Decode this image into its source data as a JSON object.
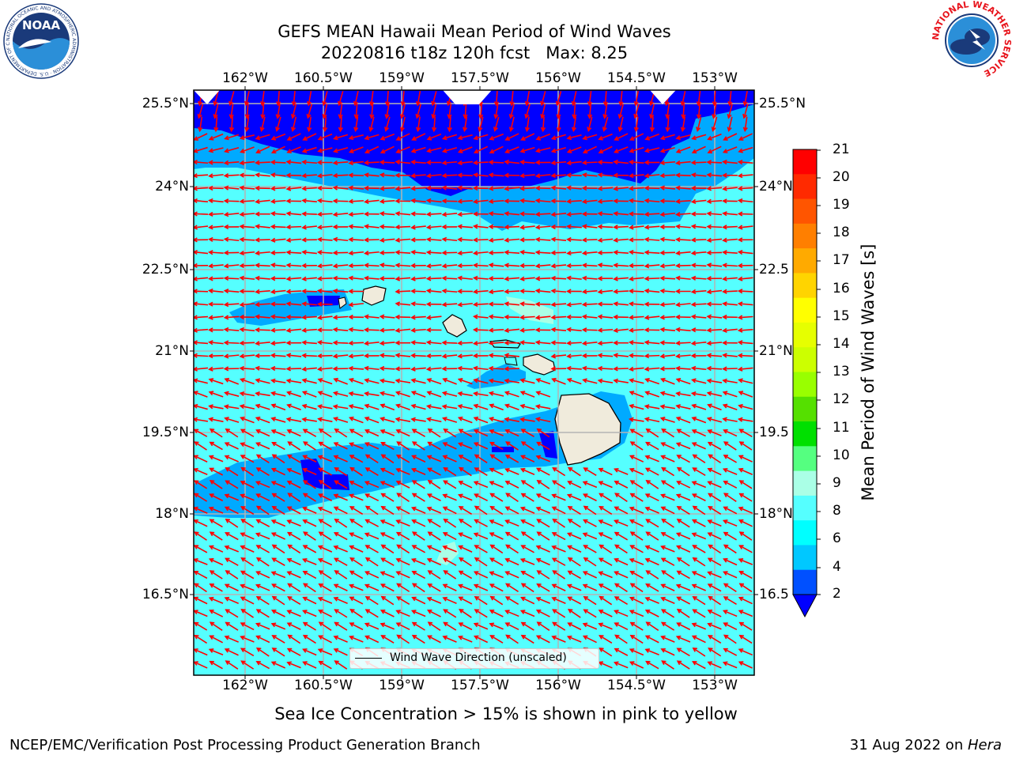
{
  "header": {
    "title_line1": "GEFS MEAN Hawaii Mean Period of Wind Waves",
    "title_line2": "20220816 t18z 120h fcst   Max: 8.25"
  },
  "logos": {
    "left": "NOAA",
    "left_ring_text": "NATIONAL OCEANIC AND ATMOSPHERIC ADMINISTRATION · U.S. DEPARTMENT OF COMMERCE",
    "right_ring_text": "NATIONAL WEATHER SERVICE"
  },
  "map": {
    "lon_ticks": [
      "162°W",
      "160.5°W",
      "159°W",
      "157.5°W",
      "156°W",
      "154.5°W",
      "153°W"
    ],
    "lat_ticks": [
      "25.5°N",
      "24°N",
      "22.5°N",
      "21°N",
      "19.5°N",
      "18°N",
      "16.5°N"
    ],
    "lat_ticks_right": [
      "25.5°N",
      "24°N",
      "22.5",
      "21°N",
      "19.5",
      "18°N",
      "16.5"
    ],
    "legend_label": "Wind Wave Direction (unscaled)",
    "arrow_color": "#ff0000"
  },
  "colorbar": {
    "label": "Mean Period of Wind Waves [s]",
    "ticks": [
      "21",
      "20",
      "19",
      "18",
      "17",
      "16",
      "15",
      "14",
      "13",
      "12",
      "11",
      "10",
      "9",
      "8",
      "6",
      "4",
      "2"
    ],
    "colors": [
      "#ff0000",
      "#ff2a00",
      "#ff5500",
      "#ff7f00",
      "#ffaa00",
      "#ffd400",
      "#ffff00",
      "#e6ff00",
      "#ccff00",
      "#99ff00",
      "#55e000",
      "#00e000",
      "#55ff80",
      "#aaffe6",
      "#55ffff",
      "#00ffff",
      "#00c8ff",
      "#0050ff"
    ],
    "extend_color": "#0000ff"
  },
  "footer": {
    "note": "Sea Ice Concentration > 15% is shown in pink to yellow",
    "left": "NCEP/EMC/Verification Post Processing Product Generation Branch",
    "right_date": "31 Aug 2022 on ",
    "right_host": "Hera"
  }
}
